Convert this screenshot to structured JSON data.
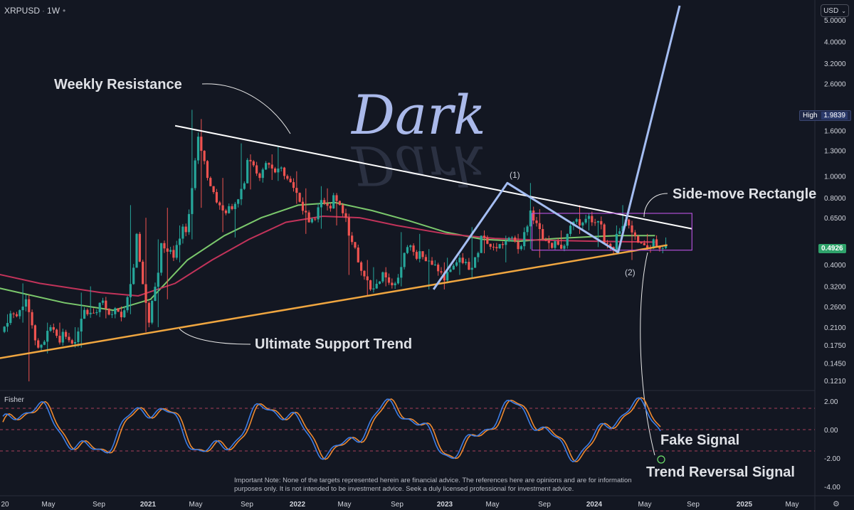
{
  "header": {
    "symbol": "XRPUSD",
    "interval": "1W",
    "currency": "USD"
  },
  "watermark": "Dark",
  "badges": {
    "high_label": "High",
    "high_value": "1.9839",
    "last_value": "0.4926"
  },
  "annotations": {
    "weekly_resistance": "Weekly Resistance",
    "ultimate_support": "Ultimate Support Trend",
    "side_move": "Side-move Rectangle",
    "point1": "(1)",
    "point2": "(2)",
    "fake_signal": "Fake Signal",
    "trend_reversal": "Trend Reversal Signal"
  },
  "indicator": {
    "name": "Fisher",
    "levels": [
      "2.00",
      "0.00",
      "-2.00",
      "-4.00"
    ]
  },
  "note": "Important Note: None of the targets represented herein are financial advice. The references here are opinions and are for information purposes only. It is not intended to be investment advice. Seek a duly licensed professional for investment advice.",
  "colors": {
    "background": "#131722",
    "candle_up": "#26a69a",
    "candle_down": "#ef5350",
    "ma_green": "#7bc86c",
    "ma_red": "#c2335a",
    "support": "#f0a640",
    "resistance": "#ffffff",
    "projection": "#a4bdf2",
    "rectangle": "#b04fd6",
    "fisher_blue": "#3d7ee6",
    "fisher_orange": "#ef8a2f",
    "trend_reversal_text": "#4fe35a"
  },
  "chart_data": {
    "type": "candlestick",
    "y_scale": "log",
    "price_ticks": [
      "5.0000",
      "4.0000",
      "3.2000",
      "2.6000",
      "1.6000",
      "1.3000",
      "1.0000",
      "0.8000",
      "0.6500",
      "0.4000",
      "0.3200",
      "0.2600",
      "0.2100",
      "0.1750",
      "0.1450",
      "0.1210"
    ],
    "time_ticks": [
      "20",
      "May",
      "Sep",
      "2021",
      "May",
      "Sep",
      "2022",
      "May",
      "Sep",
      "2023",
      "May",
      "Sep",
      "2024",
      "May",
      "Sep",
      "2025",
      "May"
    ],
    "bold_time_ticks": [
      "2021",
      "2022",
      "2023",
      "2024",
      "2025"
    ],
    "x_range": [
      "2020-01",
      "2025-08"
    ],
    "y_range": [
      0.11,
      5.8
    ],
    "trendlines": {
      "weekly_resistance": [
        [
          "2021-03",
          1.68
        ],
        [
          "2024-09",
          0.58
        ]
      ],
      "ultimate_support": [
        [
          "2019-12",
          0.15
        ],
        [
          "2024-07",
          0.49
        ]
      ],
      "projection_path": [
        [
          "2022-12",
          0.31
        ],
        [
          "2023-06",
          0.93
        ],
        [
          "2024-03",
          0.455
        ],
        [
          "2024-08",
          5.8
        ]
      ],
      "side_move_rectangle": {
        "x": [
          "2023-08",
          "2024-09"
        ],
        "y": [
          0.465,
          0.68
        ]
      }
    },
    "candles": [
      [
        "2020-01",
        0.2,
        0.24,
        0.2,
        0.24
      ],
      [
        "2020-02",
        0.24,
        0.33,
        0.22,
        0.28
      ],
      [
        "2020-03",
        0.28,
        0.29,
        0.12,
        0.17
      ],
      [
        "2020-04",
        0.17,
        0.22,
        0.16,
        0.21
      ],
      [
        "2020-05",
        0.21,
        0.22,
        0.18,
        0.2
      ],
      [
        "2020-06",
        0.2,
        0.21,
        0.17,
        0.18
      ],
      [
        "2020-07",
        0.18,
        0.3,
        0.17,
        0.24
      ],
      [
        "2020-08",
        0.24,
        0.32,
        0.24,
        0.27
      ],
      [
        "2020-09",
        0.27,
        0.28,
        0.23,
        0.24
      ],
      [
        "2020-10",
        0.24,
        0.26,
        0.23,
        0.25
      ],
      [
        "2020-11",
        0.25,
        0.74,
        0.24,
        0.55
      ],
      [
        "2020-12",
        0.55,
        0.65,
        0.2,
        0.22
      ],
      [
        "2021-01",
        0.22,
        0.52,
        0.21,
        0.5
      ],
      [
        "2021-02",
        0.5,
        0.72,
        0.28,
        0.43
      ],
      [
        "2021-03",
        0.43,
        0.6,
        0.41,
        0.56
      ],
      [
        "2021-04",
        0.56,
        1.98,
        0.52,
        1.5
      ],
      [
        "2021-05",
        1.5,
        1.8,
        0.72,
        0.9
      ],
      [
        "2021-06",
        0.9,
        0.98,
        0.56,
        0.7
      ],
      [
        "2021-07",
        0.7,
        0.76,
        0.53,
        0.75
      ],
      [
        "2021-08",
        0.75,
        1.4,
        0.74,
        1.18
      ],
      [
        "2021-09",
        1.18,
        1.25,
        0.87,
        0.98
      ],
      [
        "2021-10",
        0.98,
        1.25,
        0.96,
        1.08
      ],
      [
        "2021-11",
        1.08,
        1.35,
        0.95,
        1.0
      ],
      [
        "2021-12",
        1.0,
        1.05,
        0.75,
        0.84
      ],
      [
        "2022-01",
        0.84,
        0.88,
        0.55,
        0.62
      ],
      [
        "2022-02",
        0.62,
        0.9,
        0.58,
        0.78
      ],
      [
        "2022-03",
        0.78,
        0.88,
        0.7,
        0.82
      ],
      [
        "2022-04",
        0.82,
        0.83,
        0.6,
        0.65
      ],
      [
        "2022-05",
        0.65,
        0.66,
        0.36,
        0.41
      ],
      [
        "2022-06",
        0.41,
        0.42,
        0.29,
        0.31
      ],
      [
        "2022-07",
        0.31,
        0.39,
        0.3,
        0.37
      ],
      [
        "2022-08",
        0.37,
        0.39,
        0.32,
        0.33
      ],
      [
        "2022-09",
        0.33,
        0.56,
        0.32,
        0.48
      ],
      [
        "2022-10",
        0.48,
        0.55,
        0.41,
        0.46
      ],
      [
        "2022-11",
        0.46,
        0.47,
        0.31,
        0.4
      ],
      [
        "2022-12",
        0.4,
        0.41,
        0.31,
        0.34
      ],
      [
        "2023-01",
        0.34,
        0.43,
        0.34,
        0.41
      ],
      [
        "2023-02",
        0.41,
        0.43,
        0.36,
        0.38
      ],
      [
        "2023-03",
        0.38,
        0.59,
        0.35,
        0.54
      ],
      [
        "2023-04",
        0.54,
        0.57,
        0.45,
        0.48
      ],
      [
        "2023-05",
        0.48,
        0.54,
        0.41,
        0.51
      ],
      [
        "2023-06",
        0.51,
        0.55,
        0.45,
        0.47
      ],
      [
        "2023-07",
        0.47,
        0.93,
        0.47,
        0.7
      ],
      [
        "2023-08",
        0.7,
        0.71,
        0.43,
        0.52
      ],
      [
        "2023-09",
        0.52,
        0.54,
        0.47,
        0.51
      ],
      [
        "2023-10",
        0.51,
        0.57,
        0.48,
        0.55
      ],
      [
        "2023-11",
        0.55,
        0.74,
        0.55,
        0.6
      ],
      [
        "2023-12",
        0.6,
        0.67,
        0.57,
        0.62
      ],
      [
        "2024-01",
        0.62,
        0.63,
        0.48,
        0.5
      ],
      [
        "2024-02",
        0.5,
        0.6,
        0.5,
        0.55
      ],
      [
        "2024-03",
        0.55,
        0.74,
        0.55,
        0.6
      ],
      [
        "2024-04",
        0.6,
        0.63,
        0.42,
        0.5
      ],
      [
        "2024-05",
        0.5,
        0.55,
        0.49,
        0.52
      ],
      [
        "2024-06",
        0.52,
        0.53,
        0.47,
        0.4926
      ]
    ],
    "series": [
      {
        "name": "",
        "kind": "ma",
        "color": "#7bc86c",
        "points": [
          [
            "2019-11",
            0.33
          ],
          [
            "2020-06",
            0.27
          ],
          [
            "2020-10",
            0.25
          ],
          [
            "2021-01",
            0.28
          ],
          [
            "2021-04",
            0.42
          ],
          [
            "2021-07",
            0.54
          ],
          [
            "2021-10",
            0.65
          ],
          [
            "2022-01",
            0.74
          ],
          [
            "2022-04",
            0.76
          ],
          [
            "2022-07",
            0.7
          ],
          [
            "2022-10",
            0.63
          ],
          [
            "2023-01",
            0.56
          ],
          [
            "2023-04",
            0.52
          ],
          [
            "2023-07",
            0.51
          ],
          [
            "2023-10",
            0.525
          ],
          [
            "2024-01",
            0.535
          ],
          [
            "2024-03",
            0.54
          ],
          [
            "2024-06",
            0.54
          ]
        ]
      },
      {
        "name": "",
        "kind": "ma",
        "color": "#c2335a",
        "points": [
          [
            "2019-11",
            0.38
          ],
          [
            "2020-04",
            0.33
          ],
          [
            "2020-09",
            0.3
          ],
          [
            "2020-12",
            0.29
          ],
          [
            "2021-03",
            0.33
          ],
          [
            "2021-06",
            0.42
          ],
          [
            "2021-09",
            0.52
          ],
          [
            "2021-12",
            0.62
          ],
          [
            "2022-03",
            0.66
          ],
          [
            "2022-06",
            0.65
          ],
          [
            "2022-09",
            0.6
          ],
          [
            "2023-01",
            0.55
          ],
          [
            "2023-05",
            0.525
          ],
          [
            "2023-09",
            0.515
          ],
          [
            "2024-01",
            0.51
          ],
          [
            "2024-06",
            0.505
          ]
        ]
      }
    ]
  }
}
